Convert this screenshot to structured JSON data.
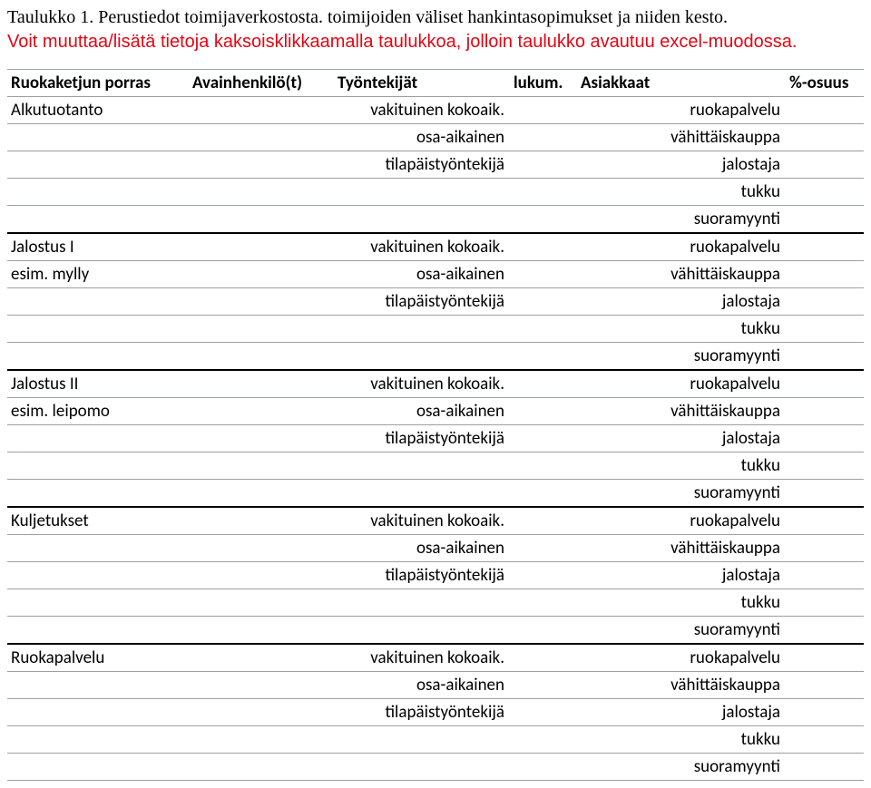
{
  "caption": "Taulukko 1. Perustiedot toimijaverkostosta. toimijoiden väliset hankintasopimukset ja niiden kesto.",
  "note_text": "Voit muuttaa/lisätä tietoja kaksoisklikkaamalla taulukkoa, jolloin taulukko avautuu excel-muodossa.",
  "note_color": "#e30613",
  "headers": {
    "c1": "Ruokaketjun porras",
    "c2": "Avainhenkilö(t)",
    "c3": "Työntekijät",
    "c4": "lukum.",
    "c5": "Asiakkaat",
    "c6": "%-osuus"
  },
  "groups": [
    {
      "r1c1": "Alkutuotanto",
      "r2c1": ""
    },
    {
      "r1c1": "Jalostus I",
      "r2c1": "esim. mylly"
    },
    {
      "r1c1": "Jalostus II",
      "r2c1": "esim. leipomo"
    },
    {
      "r1c1": "Kuljetukset",
      "r2c1": ""
    },
    {
      "r1c1": "Ruokapalvelu",
      "r2c1": ""
    }
  ],
  "block": {
    "r1c3": "vakituinen kokoaik.",
    "r1c5": "ruokapalvelu",
    "r2c3": "osa-aikainen",
    "r2c5": "vähittäiskauppa",
    "r3c3": "tilapäistyöntekijä",
    "r3c5": "jalostaja",
    "r4c5": "tukku",
    "r5c5": "suoramyynti"
  },
  "border_color": "#9aa0a6"
}
